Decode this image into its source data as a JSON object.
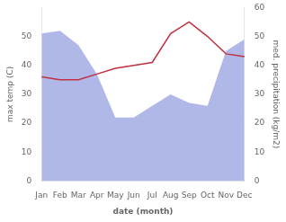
{
  "chart_data": {
    "type": "line",
    "categories": [
      "Jan",
      "Feb",
      "Mar",
      "Apr",
      "May",
      "Jun",
      "Jul",
      "Aug",
      "Sep",
      "Oct",
      "Nov",
      "Dec"
    ],
    "xlabel": "date (month)",
    "ylabel": "max temp (C)",
    "y2label": "med. precipitation (kg/m2)",
    "ylim": [
      0,
      60
    ],
    "yticks": [
      0,
      10,
      20,
      30,
      40,
      50
    ],
    "y2lim": [
      0,
      60
    ],
    "y2ticks": [
      0,
      10,
      20,
      30,
      40,
      50,
      60
    ],
    "grid": false,
    "series": [
      {
        "type": "area",
        "color": "#b0b8e8",
        "axis": "y2",
        "values": [
          51,
          52,
          47,
          37,
          22,
          22,
          26,
          30,
          27,
          26,
          45,
          49
        ]
      },
      {
        "type": "line",
        "color": "#c03040",
        "values": [
          36,
          35,
          35,
          37,
          39,
          40,
          41,
          51,
          55,
          50,
          44,
          43
        ]
      }
    ]
  }
}
